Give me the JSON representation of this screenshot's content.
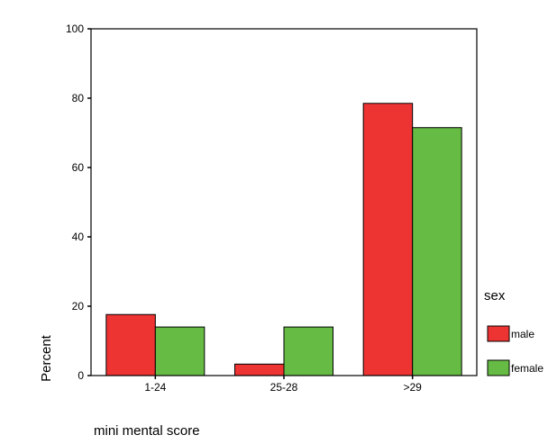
{
  "chart_data": {
    "type": "bar",
    "categories": [
      "1-24",
      "25-28",
      ">29"
    ],
    "series": [
      {
        "name": "male",
        "values": [
          17.6,
          3.3,
          78.5
        ],
        "color": "#ee3333"
      },
      {
        "name": "female",
        "values": [
          14.0,
          14.0,
          71.5
        ],
        "color": "#66bb44"
      }
    ],
    "xlabel": "mini mental score",
    "ylabel": "Percent",
    "ylim": [
      0,
      100
    ],
    "yticks": [
      0,
      20,
      40,
      60,
      80,
      100
    ],
    "legend": {
      "title": "sex",
      "placement": "right"
    },
    "grid": false
  }
}
